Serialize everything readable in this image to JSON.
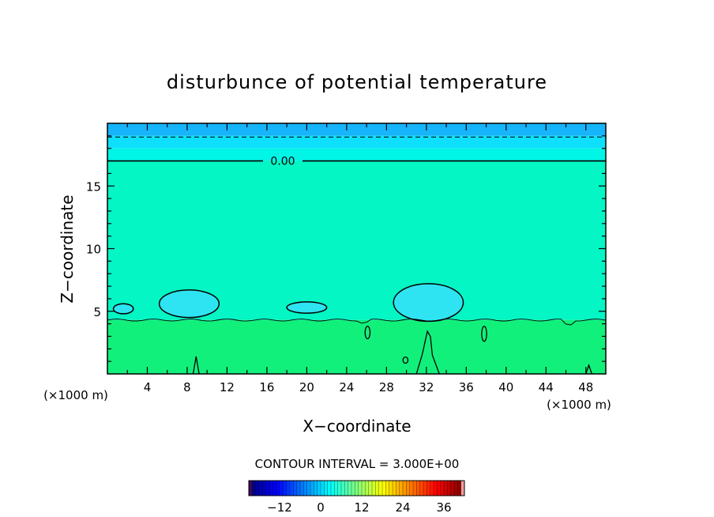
{
  "chart_data": {
    "type": "heatmap",
    "title": "disturbunce of potential temperature",
    "xlabel": "X−coordinate",
    "ylabel": "Z−coordinate",
    "x_unit": "(×1000 m)",
    "x_unit_right": "(×1000 m)",
    "xlim": [
      0,
      50
    ],
    "ylim": [
      0,
      20
    ],
    "x_ticks": [
      4,
      8,
      12,
      16,
      20,
      24,
      28,
      32,
      36,
      40,
      44,
      48
    ],
    "y_ticks": [
      5,
      10,
      15
    ],
    "contour_label": "0.00",
    "contour_interval_text": "CONTOUR INTERVAL = 3.000E+00",
    "colorbar": {
      "range": [
        -21,
        42
      ],
      "ticks": [
        -12,
        0,
        12,
        24,
        36
      ],
      "tick_labels": [
        "−12",
        "0",
        "12",
        "24",
        "36"
      ]
    },
    "bands": [
      {
        "z0": 19,
        "z1": 20,
        "color": "#16b4fa"
      },
      {
        "z0": 18,
        "z1": 19,
        "color": "#0ee0fb"
      },
      {
        "z0": 17,
        "z1": 18,
        "color": "#00f5e6"
      },
      {
        "z0": 4.3,
        "z1": 17,
        "color": "#03f6c4"
      },
      {
        "z0": 0,
        "z1": 4.3,
        "color": "#12f07c"
      }
    ],
    "contour_zero_z": 17,
    "dashed_line_z": 18.9,
    "boundary_line_z": 4.3,
    "cold_blobs": [
      {
        "xc": 1.6,
        "zc": 5.2,
        "rx": 1.0,
        "rz": 0.4
      },
      {
        "xc": 8.2,
        "zc": 5.6,
        "rx": 3.0,
        "rz": 1.1
      },
      {
        "xc": 20.0,
        "zc": 5.3,
        "rx": 2.0,
        "rz": 0.45
      },
      {
        "xc": 32.2,
        "zc": 5.7,
        "rx": 3.5,
        "rz": 1.5
      }
    ],
    "warm_features": [
      {
        "xc": 26.1,
        "zc": 3.3,
        "rx": 0.25,
        "rz": 0.5
      },
      {
        "xc": 29.9,
        "zc": 1.1,
        "rx": 0.25,
        "rz": 0.25
      },
      {
        "xc": 37.8,
        "zc": 3.2,
        "rx": 0.25,
        "rz": 0.6
      }
    ]
  }
}
